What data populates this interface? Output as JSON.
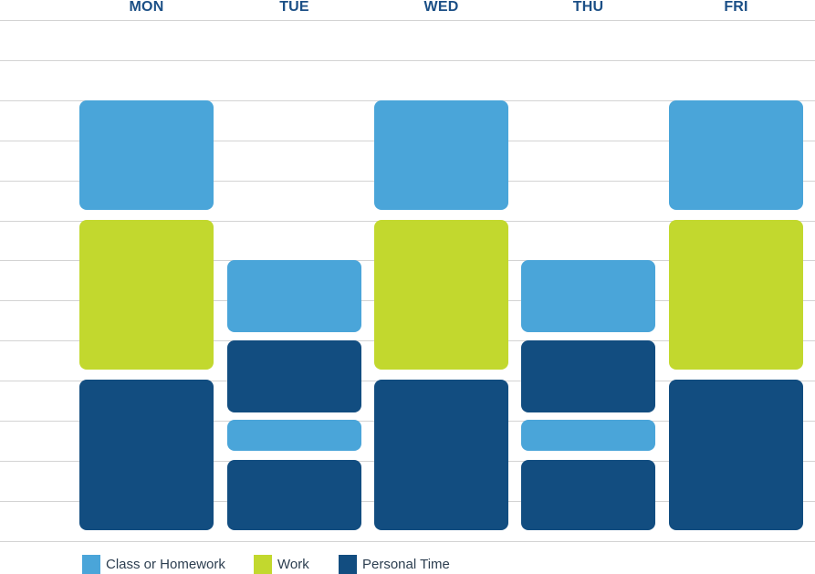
{
  "colors": {
    "header_text": "#1b4f86",
    "grid_line": "#d3d3d3",
    "class_or_homework": "#4aa5d9",
    "work": "#c2d82e",
    "personal_time": "#124d80"
  },
  "days": [
    {
      "label": "MON",
      "blocks": [
        {
          "activity": "class_or_homework",
          "start_slot": 2.0,
          "end_slot": 4.73
        },
        {
          "activity": "work",
          "start_slot": 4.98,
          "end_slot": 8.72
        },
        {
          "activity": "personal_time",
          "start_slot": 8.98,
          "end_slot": 12.73
        }
      ]
    },
    {
      "label": "TUE",
      "blocks": [
        {
          "activity": "class_or_homework",
          "start_slot": 5.98,
          "end_slot": 7.77
        },
        {
          "activity": "personal_time",
          "start_slot": 8.0,
          "end_slot": 9.79
        },
        {
          "activity": "class_or_homework",
          "start_slot": 9.98,
          "end_slot": 10.75
        },
        {
          "activity": "personal_time",
          "start_slot": 10.98,
          "end_slot": 12.73
        }
      ]
    },
    {
      "label": "WED",
      "blocks": [
        {
          "activity": "class_or_homework",
          "start_slot": 2.0,
          "end_slot": 4.73
        },
        {
          "activity": "work",
          "start_slot": 4.98,
          "end_slot": 8.72
        },
        {
          "activity": "personal_time",
          "start_slot": 8.98,
          "end_slot": 12.73
        }
      ]
    },
    {
      "label": "THU",
      "blocks": [
        {
          "activity": "class_or_homework",
          "start_slot": 5.98,
          "end_slot": 7.77
        },
        {
          "activity": "personal_time",
          "start_slot": 8.0,
          "end_slot": 9.79
        },
        {
          "activity": "class_or_homework",
          "start_slot": 9.98,
          "end_slot": 10.75
        },
        {
          "activity": "personal_time",
          "start_slot": 10.98,
          "end_slot": 12.73
        }
      ]
    },
    {
      "label": "FRI",
      "blocks": [
        {
          "activity": "class_or_homework",
          "start_slot": 2.0,
          "end_slot": 4.73
        },
        {
          "activity": "work",
          "start_slot": 4.98,
          "end_slot": 8.72
        },
        {
          "activity": "personal_time",
          "start_slot": 8.98,
          "end_slot": 12.73
        }
      ]
    }
  ],
  "grid": {
    "rows": 13
  },
  "legend": [
    {
      "key": "class_or_homework",
      "label": "Class or Homework"
    },
    {
      "key": "work",
      "label": "Work"
    },
    {
      "key": "personal_time",
      "label": "Personal Time"
    }
  ]
}
